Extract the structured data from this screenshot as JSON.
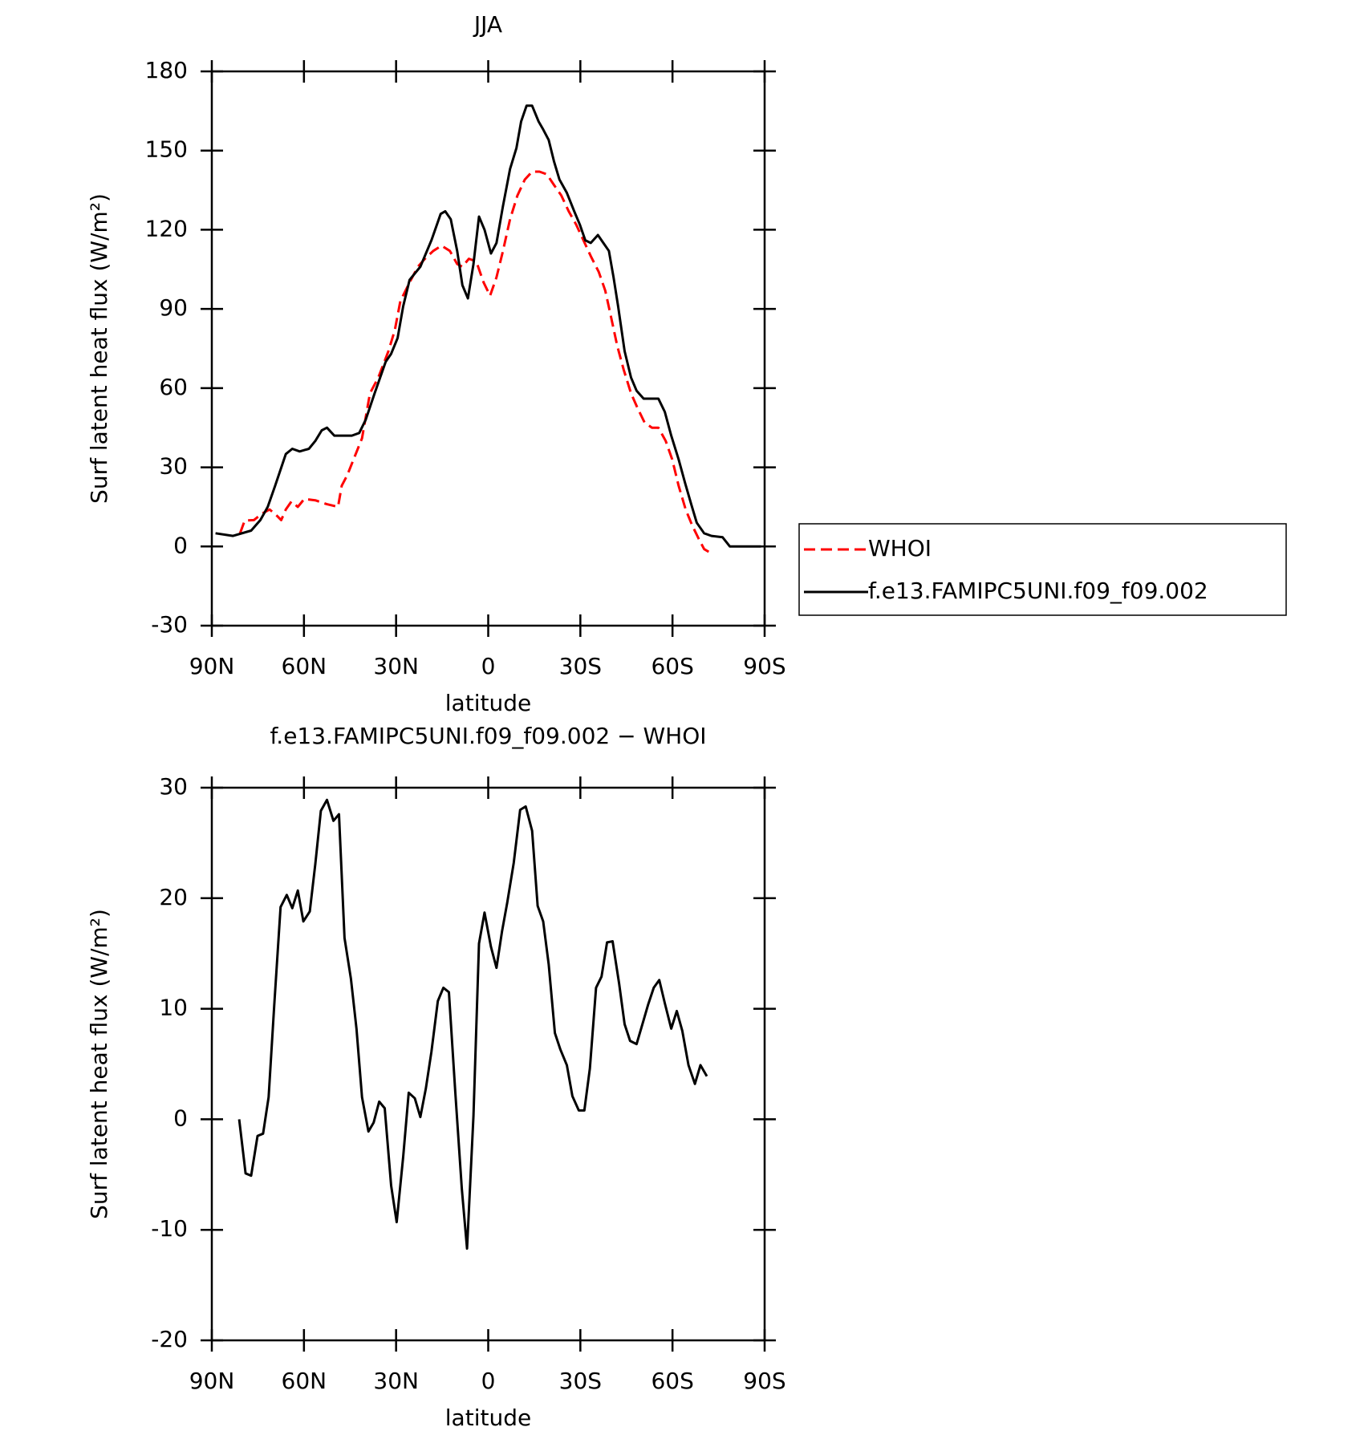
{
  "chart_data": [
    {
      "type": "line",
      "title": "JJA",
      "x_label": "latitude",
      "y_label": "Surf latent heat flux (W/m²)",
      "xlim": [
        90,
        -90
      ],
      "xticks": [
        {
          "value": 90,
          "label": "90N"
        },
        {
          "value": 60,
          "label": "60N"
        },
        {
          "value": 30,
          "label": "30N"
        },
        0,
        {
          "value": -30,
          "label": "30S"
        },
        {
          "value": -60,
          "label": "60S"
        },
        {
          "value": -90,
          "label": "90S"
        }
      ],
      "ylim": [
        -30,
        180
      ],
      "yticks": [
        -30,
        0,
        30,
        60,
        90,
        120,
        150,
        180
      ],
      "legend": "right",
      "series": [
        {
          "name": "WHOI",
          "color": "#ff0000",
          "dash": true,
          "x": [
            80.8,
            79.3,
            76.3,
            73.6,
            71.2,
            69.1,
            67.4,
            65.9,
            64.1,
            62.0,
            59.9,
            56.3,
            52.5,
            48.9,
            47.7,
            45.9,
            43.5,
            41.1,
            38.5,
            35.8,
            32.5,
            30.4,
            28.6,
            25.6,
            22.9,
            20.6,
            17.9,
            15.2,
            12.5,
            10.1,
            8.4,
            6.3,
            3.9,
            1.5,
            -0.6,
            -2.7,
            -4.8,
            -7.1,
            -9.5,
            -11.9,
            -14.3,
            -16.7,
            -19.1,
            -21.4,
            -23.8,
            -26.2,
            -28.6,
            -31.0,
            -33.4,
            -36.0,
            -38.1,
            -39.9,
            -42.0,
            -44.1,
            -46.5,
            -48.6,
            -50.9,
            -53.3,
            -55.4,
            -57.8,
            -59.9,
            -62.0,
            -64.3,
            -66.4,
            -68.5,
            -70.3,
            -71.8
          ],
          "values": [
            5,
            9.8,
            10,
            12.5,
            14,
            12,
            10,
            14,
            17,
            15,
            18,
            17.5,
            16,
            15,
            23,
            27,
            34,
            41,
            58,
            64,
            74,
            82,
            93,
            100,
            106,
            109,
            112,
            114,
            112,
            107,
            106,
            109,
            108,
            100,
            95,
            102,
            112,
            124,
            133,
            139,
            142,
            142,
            141,
            137,
            133,
            127,
            122,
            116,
            110,
            104,
            97,
            87.5,
            76,
            67,
            58,
            52.5,
            47,
            45,
            45,
            40,
            33,
            23,
            14,
            8,
            3,
            -1,
            -2
          ]
        },
        {
          "name": "f.e13.FAMIPC5UNI.f09_f09.002",
          "color": "#000000",
          "dash": false,
          "x": [
            88.8,
            83.1,
            77.2,
            74.2,
            71.8,
            69.4,
            65.9,
            63.8,
            61.4,
            58.4,
            56.3,
            54.2,
            52.5,
            50.1,
            47.4,
            44.4,
            42.0,
            39.9,
            37.0,
            33.4,
            31.6,
            29.5,
            27.7,
            25.6,
            22.1,
            18.5,
            15.5,
            14.0,
            12.2,
            10.1,
            8.4,
            6.6,
            4.8,
            3.0,
            1.2,
            -0.9,
            -2.7,
            -4.8,
            -7.1,
            -9.2,
            -10.7,
            -12.5,
            -14.3,
            -16.4,
            -17.9,
            -19.7,
            -21.4,
            -23.2,
            -25.6,
            -28.0,
            -29.8,
            -31.6,
            -33.4,
            -35.7,
            -37.5,
            -39.3,
            -40.8,
            -42.3,
            -44.4,
            -46.5,
            -48.3,
            -50.6,
            -53.0,
            -55.4,
            -57.5,
            -59.6,
            -62.0,
            -64.1,
            -66.1,
            -67.9,
            -70.3,
            -72.7,
            -76.3,
            -78.7,
            -80.7,
            -83.7,
            -86.7,
            -88.8
          ],
          "values": [
            5,
            4,
            6,
            10,
            15,
            23,
            35,
            37,
            36,
            37,
            40,
            44,
            45,
            42,
            42,
            42,
            43,
            48,
            58,
            70,
            73,
            79,
            91,
            101,
            106,
            116,
            126,
            127,
            124,
            112,
            99,
            94,
            107,
            125,
            120,
            111,
            115,
            129,
            143,
            151,
            161,
            167,
            167,
            161,
            158,
            154,
            146,
            139,
            134,
            127,
            122,
            116,
            115,
            118,
            115,
            112,
            102,
            91,
            74,
            64,
            59,
            56,
            56,
            56,
            51,
            42,
            33,
            24,
            16,
            9,
            5,
            4,
            3.5,
            0,
            0,
            0,
            0,
            0
          ]
        }
      ]
    },
    {
      "type": "line",
      "title": "f.e13.FAMIPC5UNI.f09_f09.002 − WHOI",
      "x_label": "latitude",
      "y_label": "Surf latent heat flux (W/m²)",
      "xlim": [
        90,
        -90
      ],
      "xticks": [
        {
          "value": 90,
          "label": "90N"
        },
        {
          "value": 60,
          "label": "60N"
        },
        {
          "value": 30,
          "label": "30N"
        },
        0,
        {
          "value": -30,
          "label": "30S"
        },
        {
          "value": -60,
          "label": "60S"
        },
        {
          "value": -90,
          "label": "90S"
        }
      ],
      "ylim": [
        -20,
        30
      ],
      "yticks": [
        -20,
        -10,
        0,
        10,
        20,
        30
      ],
      "series": [
        {
          "color": "#000000",
          "dash": false,
          "x": [
            81.1,
            79.0,
            77.2,
            75.1,
            73.3,
            71.5,
            69.7,
            67.6,
            65.6,
            63.8,
            62.0,
            60.2,
            58.1,
            56.3,
            54.5,
            52.5,
            50.4,
            48.6,
            46.8,
            44.7,
            42.9,
            41.1,
            39.0,
            37.3,
            35.5,
            33.7,
            31.6,
            29.8,
            27.7,
            25.9,
            23.9,
            22.1,
            20.3,
            18.5,
            16.4,
            14.6,
            12.8,
            10.7,
            8.6,
            6.9,
            4.8,
            3.0,
            1.2,
            -0.9,
            -2.7,
            -4.5,
            -6.2,
            -8.3,
            -10.4,
            -12.2,
            -14.3,
            -16.1,
            -17.9,
            -19.7,
            -21.7,
            -23.5,
            -25.6,
            -27.4,
            -29.5,
            -31.3,
            -33.1,
            -35.1,
            -36.9,
            -38.7,
            -40.5,
            -42.6,
            -44.4,
            -46.2,
            -48.3,
            -50.0,
            -52.1,
            -53.9,
            -55.7,
            -57.5,
            -59.6,
            -61.4,
            -63.2,
            -65.2,
            -67.3,
            -69.1,
            -71.2
          ],
          "values": [
            0,
            -4.9,
            -5.1,
            -1.5,
            -1.3,
            2.0,
            10.2,
            19.2,
            20.3,
            19.1,
            20.7,
            17.9,
            18.8,
            23.1,
            27.9,
            28.9,
            27.0,
            27.6,
            16.4,
            12.7,
            8.2,
            2.0,
            -1.1,
            -0.3,
            1.6,
            1.0,
            -6.0,
            -9.3,
            -3.4,
            2.4,
            1.9,
            0.2,
            2.8,
            6.1,
            10.7,
            11.9,
            11.5,
            2.4,
            -6.3,
            -11.7,
            0.3,
            15.9,
            18.7,
            15.6,
            13.7,
            17.0,
            19.6,
            23.2,
            28.0,
            28.3,
            26.1,
            19.3,
            17.9,
            14.0,
            7.8,
            6.3,
            4.9,
            2.1,
            0.8,
            0.8,
            4.6,
            11.9,
            12.9,
            16.0,
            16.1,
            12.3,
            8.6,
            7.1,
            6.8,
            8.4,
            10.4,
            11.9,
            12.6,
            10.5,
            8.2,
            9.8,
            8.0,
            4.9,
            3.2,
            4.9,
            3.9
          ]
        }
      ]
    }
  ]
}
